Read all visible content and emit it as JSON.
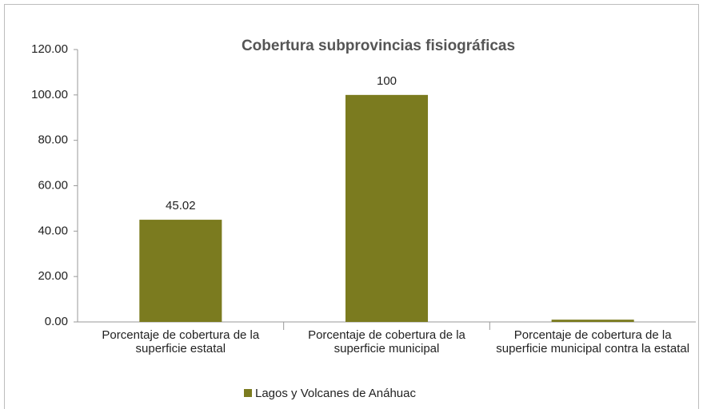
{
  "chart_data": {
    "type": "bar",
    "title": "Cobertura subprovincias fisiográficas",
    "categories": [
      "Porcentaje de cobertura de la superficie estatal",
      "Porcentaje de cobertura de la superficie municipal",
      "Porcentaje de cobertura de la superficie municipal contra la estatal"
    ],
    "series": [
      {
        "name": "Lagos y Volcanes de Anáhuac",
        "color": "#7b7b1f",
        "values": [
          45.02,
          100,
          1
        ],
        "value_labels": [
          "45.02",
          "100",
          null
        ]
      }
    ],
    "ylim": [
      0,
      120
    ],
    "yticks": [
      {
        "value": 0,
        "label": "0.00"
      },
      {
        "value": 20,
        "label": "20.00"
      },
      {
        "value": 40,
        "label": "40.00"
      },
      {
        "value": 60,
        "label": "60.00"
      },
      {
        "value": 80,
        "label": "80.00"
      },
      {
        "value": 100,
        "label": "100.00"
      },
      {
        "value": 120,
        "label": "120.00"
      }
    ],
    "grid": false,
    "legend": "bottom"
  }
}
